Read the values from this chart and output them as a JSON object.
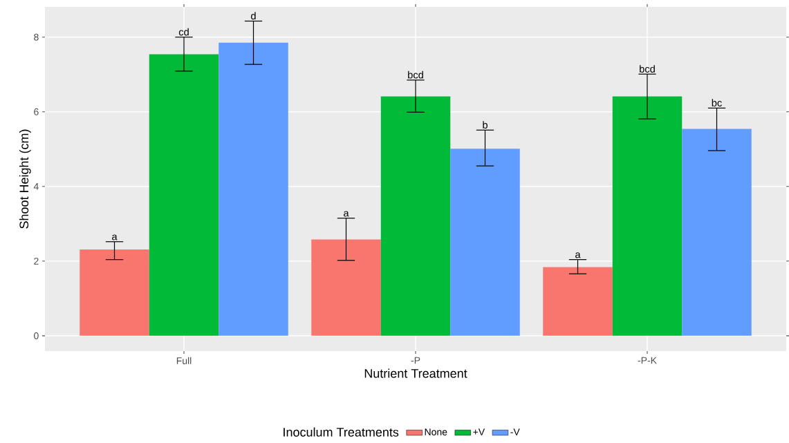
{
  "chart_data": {
    "type": "bar",
    "xlabel": "Nutrient Treatment",
    "ylabel": "Shoot Height (cm)",
    "legend_title": "Inoculum Treatments",
    "categories": [
      "Full",
      "-P",
      "-P-K"
    ],
    "series": [
      {
        "name": "None",
        "color": "#f8766d",
        "values": [
          2.31,
          2.58,
          1.84
        ],
        "errors": [
          [
            2.04,
            2.52
          ],
          [
            2.02,
            3.15
          ],
          [
            1.66,
            2.04
          ]
        ],
        "value_labels": [
          "a",
          "a",
          "a"
        ]
      },
      {
        "name": "+V",
        "color": "#00ba38",
        "values": [
          7.54,
          6.41,
          6.41
        ],
        "errors": [
          [
            7.09,
            8.0
          ],
          [
            5.99,
            6.85
          ],
          [
            5.81,
            7.01
          ]
        ],
        "value_labels": [
          "cd",
          "bcd",
          "bcd"
        ]
      },
      {
        "name": "-V",
        "color": "#619cff",
        "values": [
          7.85,
          5.01,
          5.54
        ],
        "errors": [
          [
            7.27,
            8.43
          ],
          [
            4.55,
            5.51
          ],
          [
            4.96,
            6.1
          ]
        ],
        "value_labels": [
          "d",
          "b",
          "bc"
        ]
      }
    ],
    "ylim": [
      -0.41,
      8.81
    ],
    "yticks": [
      0,
      2,
      4,
      6,
      8
    ],
    "grid": true,
    "legend": "bottom"
  }
}
